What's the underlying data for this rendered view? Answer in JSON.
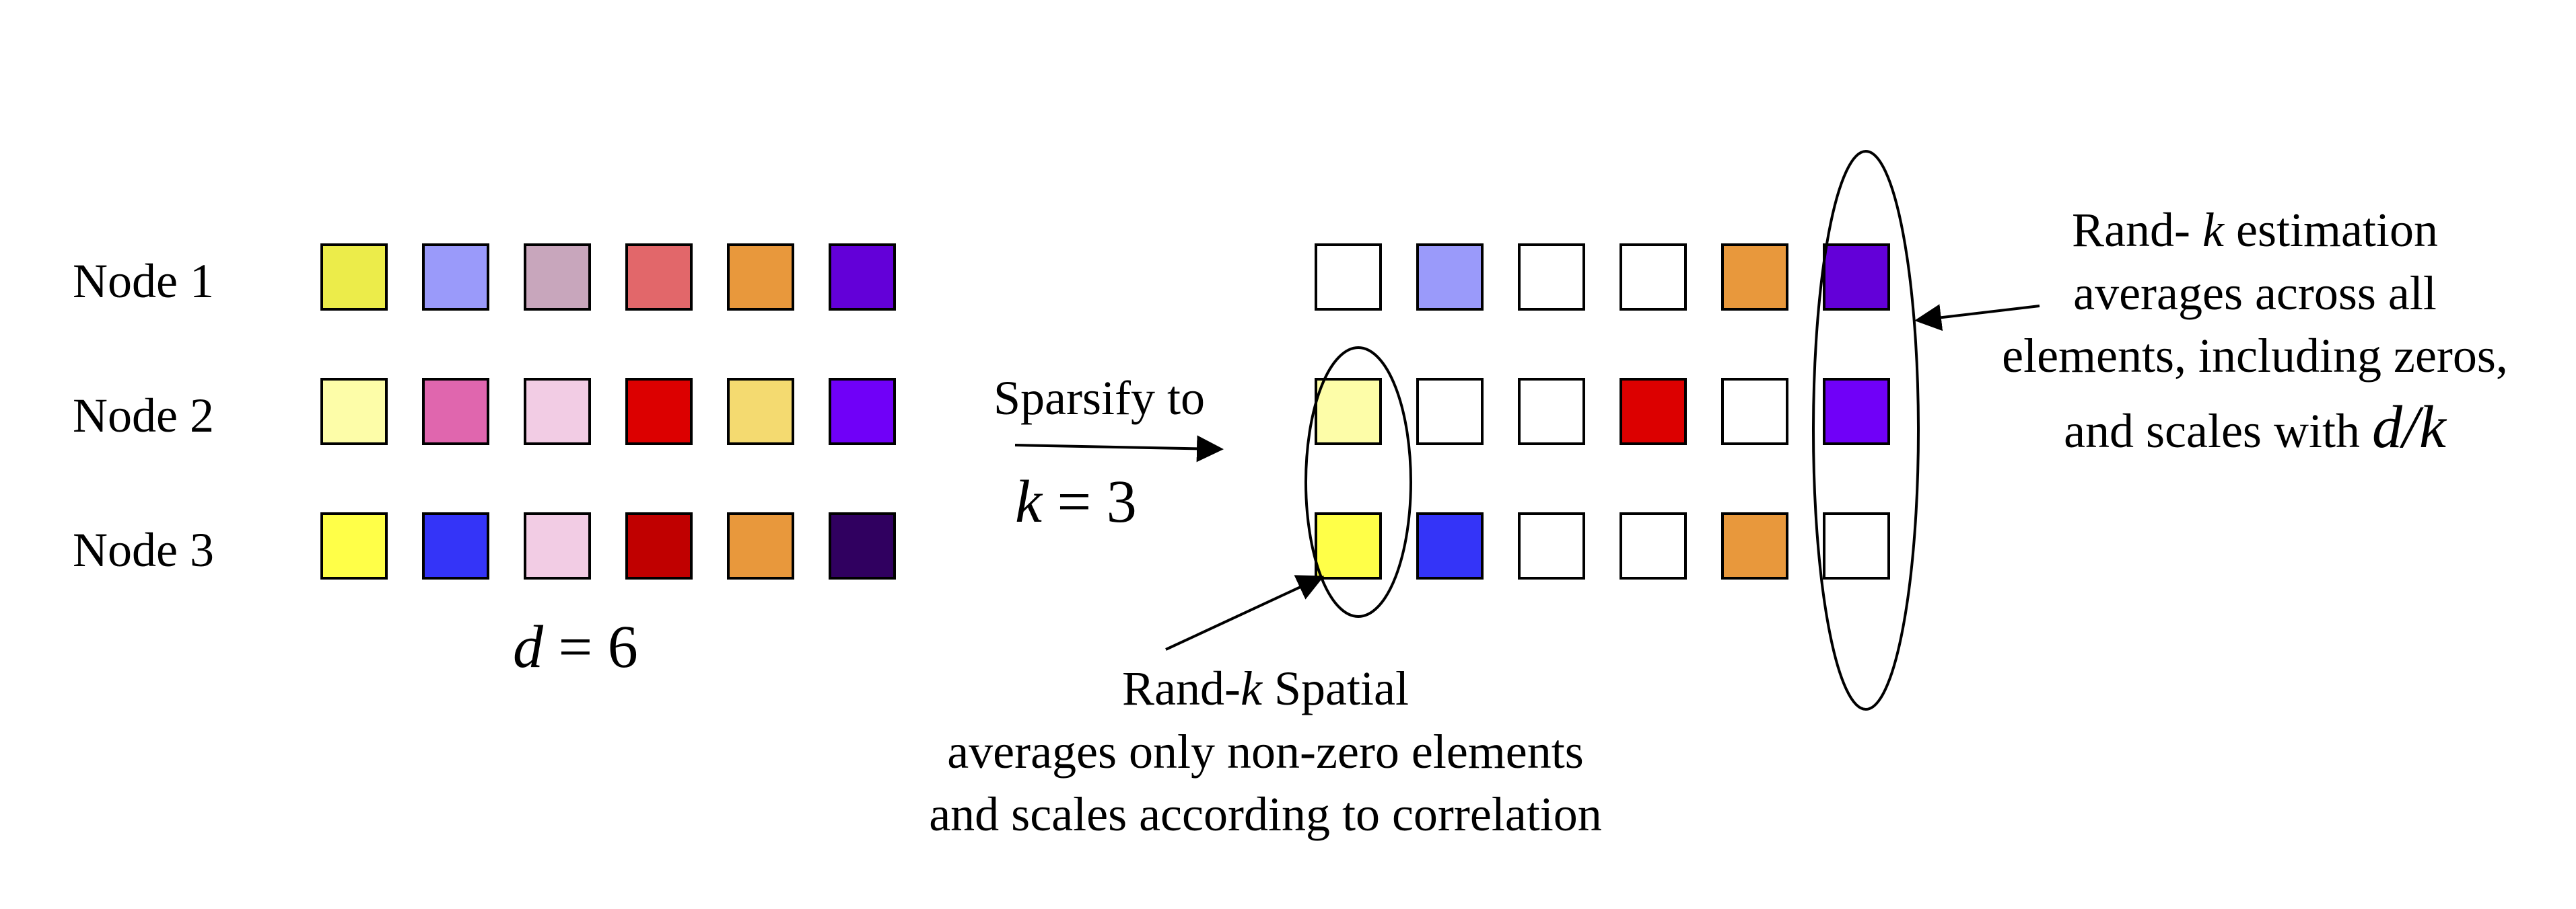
{
  "node_labels": [
    "Node 1",
    "Node 2",
    "Node 3"
  ],
  "grid_left": [
    [
      "#ECEC4A",
      "#9A9AFA",
      "#C8A6BC",
      "#E2676A",
      "#E8983C",
      "#6300D8"
    ],
    [
      "#FDFDA8",
      "#E066AE",
      "#F2CCE4",
      "#DC0000",
      "#F4DA70",
      "#7000F8"
    ],
    [
      "#FFFF48",
      "#3434F8",
      "#F2CCE4",
      "#C00000",
      "#E8983C",
      "#300060"
    ]
  ],
  "grid_right": [
    [
      "#FFFFFF",
      "#9A9AFA",
      "#FFFFFF",
      "#FFFFFF",
      "#E8983C",
      "#6300D8"
    ],
    [
      "#FDFDA8",
      "#FFFFFF",
      "#FFFFFF",
      "#DC0000",
      "#FFFFFF",
      "#7000F8"
    ],
    [
      "#FFFF48",
      "#3434F8",
      "#FFFFFF",
      "#FFFFFF",
      "#E8983C",
      "#FFFFFF"
    ]
  ],
  "d_label": {
    "var": "d",
    "op": "=",
    "value": "6"
  },
  "sparsify": {
    "text": "Sparsify to",
    "var": "k",
    "op": "=",
    "value": "3"
  },
  "annotation_left": {
    "line1_prefix": "Rand-",
    "line1_var": "k",
    "line1_suffix": "Spatial",
    "line2": "averages only non-zero elements",
    "line3": "and scales according to correlation"
  },
  "annotation_right": {
    "line1_prefix": "Rand-",
    "line1_var": "k",
    "line1_suffix": "estimation",
    "line2": "averages across all",
    "line3": "elements, including zeros,",
    "line4_prefix": "and scales with",
    "line4_math": "d/k"
  }
}
